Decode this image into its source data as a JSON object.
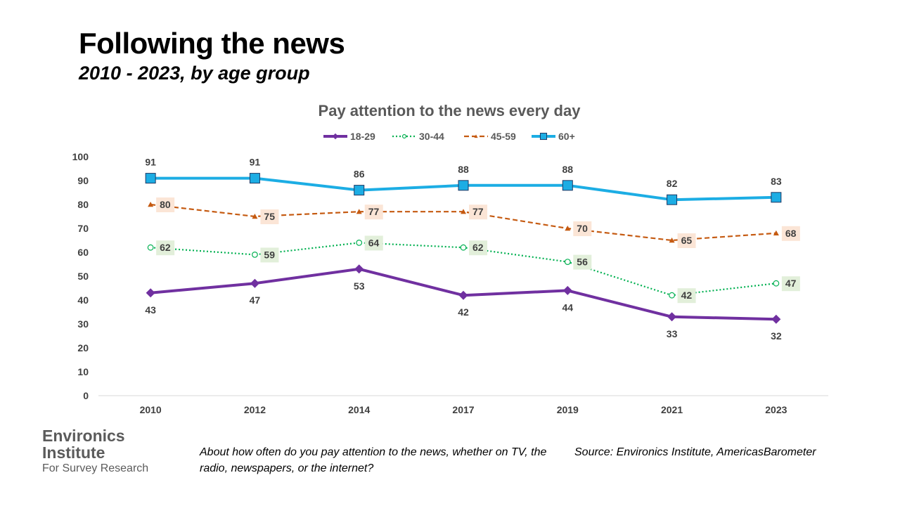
{
  "slide": {
    "title": "Following the news",
    "subtitle": "2010 - 2023, by age group",
    "question": "About how often do you pay attention to the news, whether on TV, the radio, newspapers, or the internet?",
    "source": "Source: Environics Institute, AmericasBarometer",
    "logo": {
      "line1": "Environics",
      "line2": "Institute",
      "line3": "For Survey Research"
    }
  },
  "chart_data": {
    "type": "line",
    "title": "Pay attention to the news every day",
    "xlabel": "",
    "ylabel": "",
    "categories": [
      "2010",
      "2012",
      "2014",
      "2017",
      "2019",
      "2021",
      "2023"
    ],
    "ylim": [
      0,
      100
    ],
    "yticks": [
      0,
      10,
      20,
      30,
      40,
      50,
      60,
      70,
      80,
      90,
      100
    ],
    "grid": false,
    "legend_position": "top",
    "series": [
      {
        "name": "18-29",
        "values": [
          43,
          47,
          53,
          42,
          44,
          33,
          32
        ],
        "color": "#7030a0",
        "line_style": "solid",
        "marker": "diamond",
        "label_position": "below",
        "label_box": false
      },
      {
        "name": "30-44",
        "values": [
          62,
          59,
          64,
          62,
          56,
          42,
          47
        ],
        "color": "#00b050",
        "line_style": "dotted",
        "marker": "open-circle",
        "label_position": "right",
        "label_box": true,
        "label_fill": "#e2efda"
      },
      {
        "name": "45-59",
        "values": [
          80,
          75,
          77,
          77,
          70,
          65,
          68
        ],
        "color": "#c55a11",
        "line_style": "dashed",
        "marker": "triangle",
        "label_position": "right",
        "label_box": true,
        "label_fill": "#fbe5d6"
      },
      {
        "name": "60+",
        "values": [
          91,
          91,
          86,
          88,
          88,
          82,
          83
        ],
        "color": "#1cade4",
        "line_style": "solid",
        "marker": "square",
        "label_position": "above",
        "label_box": false
      }
    ]
  }
}
